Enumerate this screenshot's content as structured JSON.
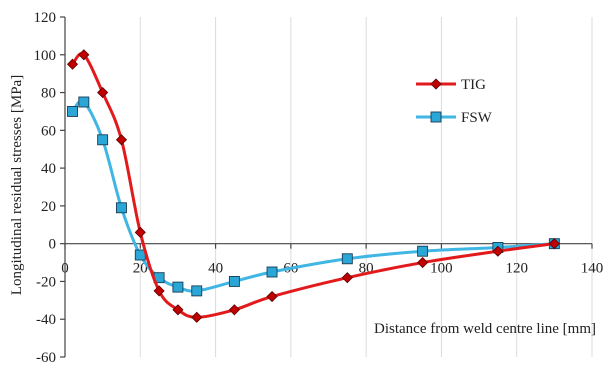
{
  "chart_data": {
    "type": "line",
    "title": "",
    "xlabel": "Distance from weld centre line [mm]",
    "ylabel": "Longitudinal residual stresses [MPa]",
    "xlim": [
      0,
      140
    ],
    "ylim": [
      -60,
      120
    ],
    "x_ticks": [
      0,
      20,
      40,
      60,
      80,
      100,
      120,
      140
    ],
    "y_ticks": [
      -60,
      -40,
      -20,
      0,
      20,
      40,
      60,
      80,
      100,
      120
    ],
    "grid": "vertical",
    "legend_position": "right",
    "series": [
      {
        "name": "TIG",
        "color": "#e31a1c",
        "marker": "diamond",
        "marker_color": "#c00000",
        "x": [
          2,
          5,
          10,
          15,
          20,
          25,
          30,
          35,
          45,
          55,
          75,
          95,
          115,
          130
        ],
        "y": [
          95,
          100,
          80,
          55,
          6,
          -25,
          -35,
          -39,
          -35,
          -28,
          -18,
          -10,
          -4,
          0
        ]
      },
      {
        "name": "FSW",
        "color": "#3fb6e3",
        "marker": "square",
        "marker_color": "#2aa7d6",
        "x": [
          2,
          5,
          10,
          15,
          20,
          25,
          30,
          35,
          45,
          55,
          75,
          95,
          115,
          130
        ],
        "y": [
          70,
          75,
          55,
          19,
          -6,
          -18,
          -23,
          -25,
          -20,
          -15,
          -8,
          -4,
          -2,
          0
        ]
      }
    ]
  }
}
